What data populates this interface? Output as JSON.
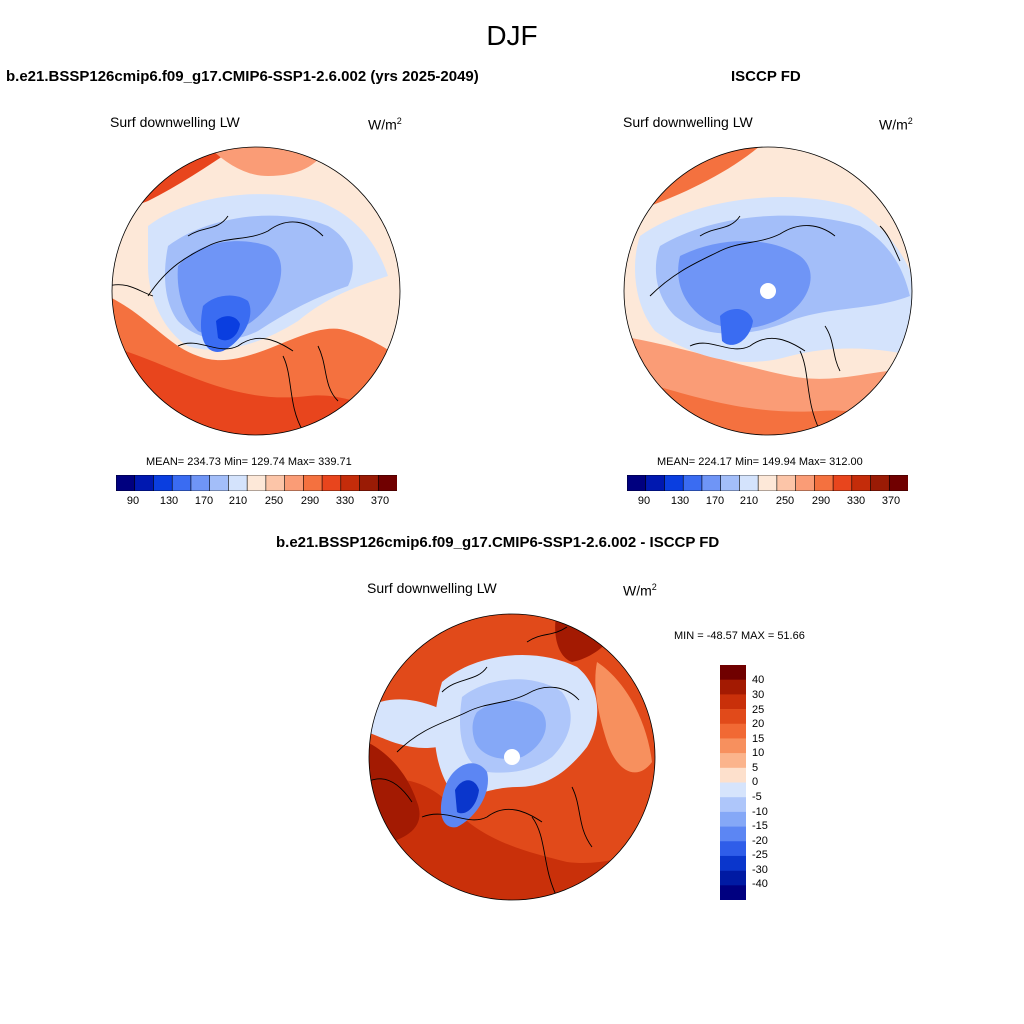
{
  "suptitle": "DJF",
  "panel_left": {
    "title": "b.e21.BSSP126cmip6.f09_g17.CMIP6-SSP1-2.6.002 (yrs 2025-2049)",
    "variable": "Surf downwelling LW",
    "units_base": "W/m",
    "units_exp": "2",
    "stats": "MEAN= 234.73  Min= 129.74  Max= 339.71",
    "colorbar_ticks": [
      "90",
      "130",
      "170",
      "210",
      "250",
      "290",
      "330",
      "370"
    ]
  },
  "panel_right": {
    "title": "ISCCP FD",
    "variable": "Surf downwelling LW",
    "units_base": "W/m",
    "units_exp": "2",
    "stats": "MEAN= 224.17  Min= 149.94  Max= 312.00",
    "colorbar_ticks": [
      "90",
      "130",
      "170",
      "210",
      "250",
      "290",
      "330",
      "370"
    ]
  },
  "panel_diff": {
    "title": "b.e21.BSSP126cmip6.f09_g17.CMIP6-SSP1-2.6.002 - ISCCP FD",
    "variable": "Surf downwelling LW",
    "units_base": "W/m",
    "units_exp": "2",
    "stats": "MIN = -48.57 MAX =  51.66",
    "colorbar_ticks": [
      "40",
      "30",
      "25",
      "20",
      "15",
      "10",
      "5",
      "0",
      "-5",
      "-10",
      "-15",
      "-20",
      "-25",
      "-30",
      "-40"
    ]
  },
  "colors": {
    "abs_scale": [
      "#00007f",
      "#0018b0",
      "#0a3ee0",
      "#3a6cf2",
      "#6f95f6",
      "#a3bef9",
      "#d4e3fc",
      "#fde8d8",
      "#fcc5a8",
      "#fa9c76",
      "#f4713f",
      "#e8451d",
      "#c42c0a",
      "#9a1b05",
      "#700000"
    ],
    "diff_scale": [
      "#700000",
      "#a31a02",
      "#c9300a",
      "#e14a1a",
      "#f16934",
      "#f7905e",
      "#fbb48c",
      "#fde0cc",
      "#d6e4fc",
      "#aec6fa",
      "#85a8f7",
      "#5c86f3",
      "#2f5de9",
      "#0a36cc",
      "#001aa3",
      "#000080"
    ]
  }
}
